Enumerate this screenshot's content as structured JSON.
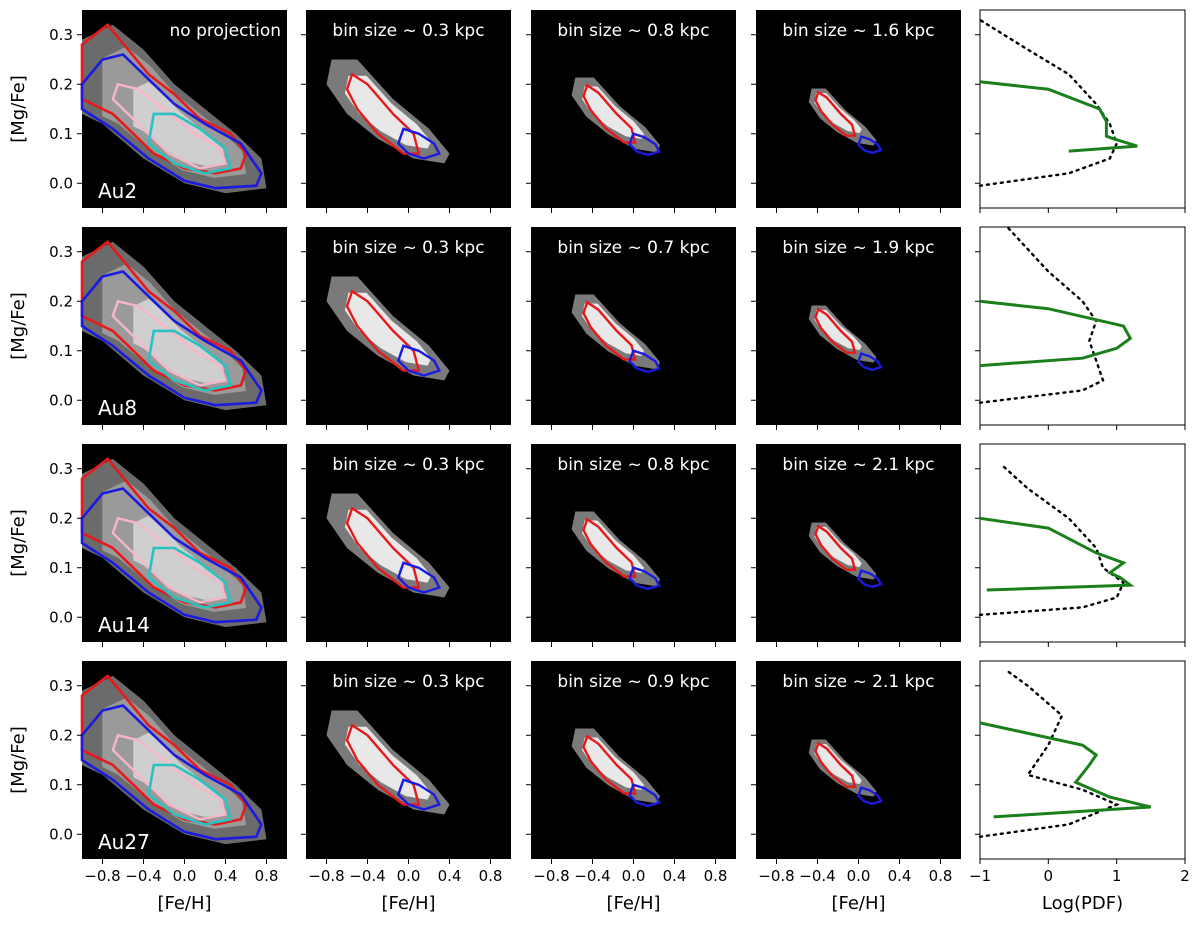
{
  "chart_data": {
    "type": "figure-grid",
    "rows": [
      {
        "galaxy": "Au2",
        "first_label": "no projection",
        "bin_labels": [
          "bin size ~ 0.3 kpc",
          "bin size ~ 0.8 kpc",
          "bin size ~ 1.6 kpc"
        ],
        "green": [
          [
            0.3,
            0.065
          ],
          [
            1.3,
            0.075
          ],
          [
            0.95,
            0.09
          ],
          [
            0.85,
            0.095
          ],
          [
            0.85,
            0.125
          ],
          [
            0.75,
            0.15
          ],
          [
            0,
            0.19
          ],
          [
            -1,
            0.205
          ]
        ],
        "dotted": [
          [
            -1,
            -0.005
          ],
          [
            0.3,
            0.02
          ],
          [
            0.9,
            0.05
          ],
          [
            1.0,
            0.08
          ],
          [
            0.9,
            0.12
          ],
          [
            0.7,
            0.16
          ],
          [
            0.3,
            0.22
          ],
          [
            -0.3,
            0.27
          ],
          [
            -1,
            0.33
          ]
        ]
      },
      {
        "galaxy": "Au8",
        "first_label": "",
        "bin_labels": [
          "bin size ~ 0.3 kpc",
          "bin size ~ 0.7 kpc",
          "bin size ~ 1.9 kpc"
        ],
        "green": [
          [
            -1,
            0.07
          ],
          [
            0.5,
            0.085
          ],
          [
            1.0,
            0.105
          ],
          [
            1.2,
            0.125
          ],
          [
            1.1,
            0.15
          ],
          [
            0,
            0.185
          ],
          [
            -1,
            0.2
          ]
        ],
        "dotted": [
          [
            -1,
            -0.005
          ],
          [
            0.5,
            0.02
          ],
          [
            0.8,
            0.04
          ],
          [
            0.7,
            0.08
          ],
          [
            0.6,
            0.12
          ],
          [
            0.7,
            0.16
          ],
          [
            0.5,
            0.2
          ],
          [
            0,
            0.26
          ],
          [
            -0.6,
            0.35
          ]
        ]
      },
      {
        "galaxy": "Au14",
        "first_label": "",
        "bin_labels": [
          "bin size ~ 0.3 kpc",
          "bin size ~ 0.8 kpc",
          "bin size ~ 2.1 kpc"
        ],
        "green": [
          [
            -0.9,
            0.055
          ],
          [
            1.2,
            0.065
          ],
          [
            1.05,
            0.08
          ],
          [
            0.9,
            0.09
          ],
          [
            1.0,
            0.1
          ],
          [
            1.1,
            0.11
          ],
          [
            0.7,
            0.13
          ],
          [
            0,
            0.18
          ],
          [
            -1,
            0.2
          ]
        ],
        "dotted": [
          [
            -1,
            0.005
          ],
          [
            0.5,
            0.02
          ],
          [
            1.0,
            0.04
          ],
          [
            1.1,
            0.07
          ],
          [
            0.8,
            0.1
          ],
          [
            0.7,
            0.14
          ],
          [
            0.3,
            0.2
          ],
          [
            -0.3,
            0.26
          ],
          [
            -0.7,
            0.31
          ]
        ]
      },
      {
        "galaxy": "Au27",
        "first_label": "",
        "bin_labels": [
          "bin size ~ 0.3 kpc",
          "bin size ~ 0.9 kpc",
          "bin size ~ 2.1 kpc"
        ],
        "green": [
          [
            -0.8,
            0.035
          ],
          [
            1.5,
            0.055
          ],
          [
            0.9,
            0.075
          ],
          [
            0.4,
            0.105
          ],
          [
            0.6,
            0.14
          ],
          [
            0.7,
            0.16
          ],
          [
            0.5,
            0.18
          ],
          [
            -1,
            0.225
          ]
        ],
        "dotted": [
          [
            -1,
            -0.005
          ],
          [
            0.3,
            0.02
          ],
          [
            1.0,
            0.06
          ],
          [
            0.5,
            0.09
          ],
          [
            -0.3,
            0.12
          ],
          [
            0.0,
            0.18
          ],
          [
            0.2,
            0.24
          ],
          [
            -0.3,
            0.3
          ],
          [
            -0.6,
            0.33
          ]
        ]
      }
    ],
    "x_label": "[Fe/H]",
    "y_label": "[Mg/Fe]",
    "x_ticks": [
      "−0.8",
      "−0.4",
      "0.0",
      "0.4",
      "0.8"
    ],
    "y_ticks": [
      "0.0",
      "0.1",
      "0.2",
      "0.3"
    ],
    "pdf_label": "Log(PDF)",
    "pdf_ticks": [
      "−1",
      "0",
      "1",
      "2"
    ],
    "xlim": [
      -1.0,
      1.0
    ],
    "ylim": [
      -0.05,
      0.35
    ],
    "pdf_xlim": [
      -1,
      2
    ],
    "colors": {
      "red": "#e8191b",
      "blue": "#1a1ae0",
      "pink": "#f7b6c8",
      "cyan": "#2ac2c0",
      "green": "#1b7f1b",
      "background": "#000000"
    }
  }
}
